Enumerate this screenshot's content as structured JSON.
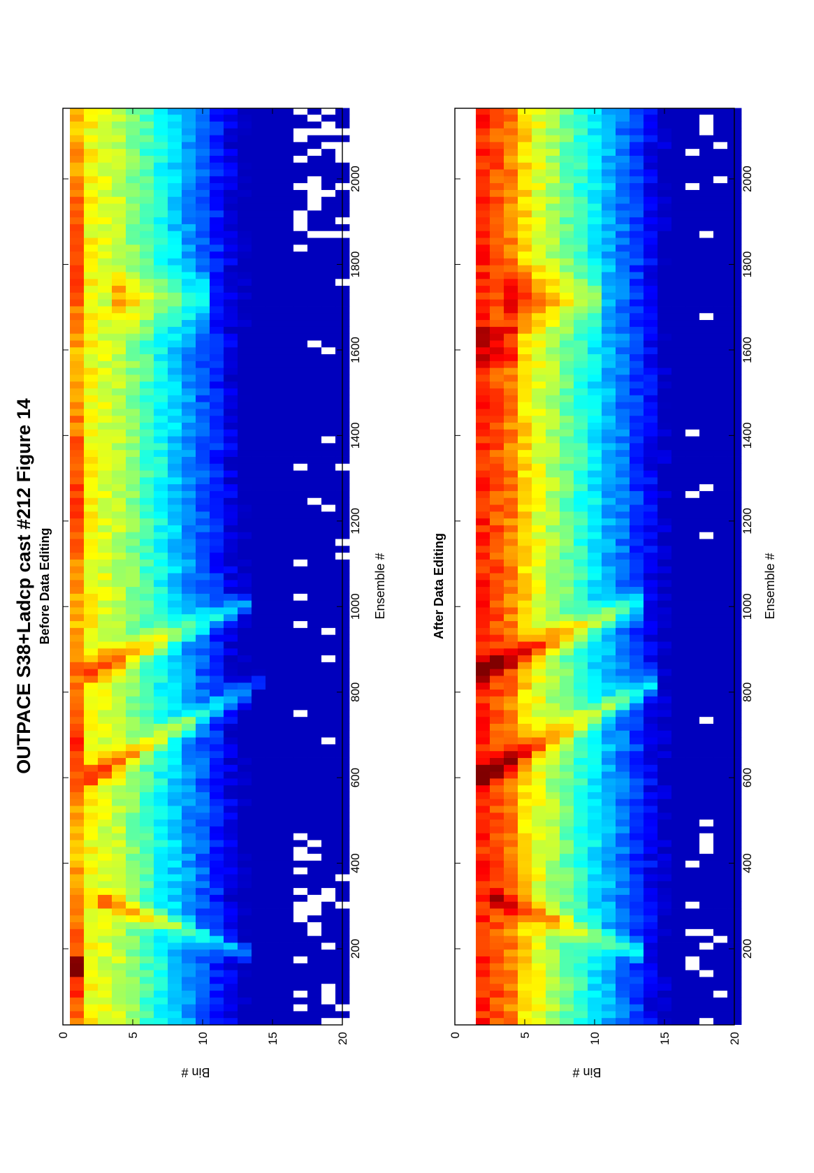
{
  "figure": {
    "title": "OUTPACE S38+Ladcp cast #212  Figure 14"
  },
  "chart_data": [
    {
      "type": "heatmap",
      "title": "Before Data Editing",
      "xlabel": "Ensemble #",
      "ylabel": "Bin #",
      "xlim": [
        22,
        2165
      ],
      "ylim": [
        0,
        20
      ],
      "x_ticks": [
        200,
        400,
        600,
        800,
        1000,
        1200,
        1400,
        1600,
        1800,
        2000
      ],
      "x_tick_labels": [
        "200",
        "400",
        "600",
        "800",
        "1000",
        "1200",
        "1400",
        "1600",
        "1800",
        "2000"
      ],
      "y_ticks": [
        0,
        5,
        10,
        15,
        20
      ],
      "y_tick_labels": [
        "0",
        "5",
        "10",
        "15",
        "20"
      ],
      "first_bin": 1,
      "last_bin": 20,
      "colormap": "jet",
      "missing_color": "#ffffff",
      "description_of_field": "Echo intensity highest (red/orange) in bins 1-3, decreasing to dark blue by bin 10; cyan diagonal streaks near ensembles 300, 600-700 and 850-950; white (flagged/missing) samples scattered in bins 17-20"
    },
    {
      "type": "heatmap",
      "title": "After Data Editing",
      "xlabel": "Ensemble #",
      "ylabel": "Bin #",
      "xlim": [
        22,
        2165
      ],
      "ylim": [
        0,
        20
      ],
      "x_ticks": [
        200,
        400,
        600,
        800,
        1000,
        1200,
        1400,
        1600,
        1800,
        2000
      ],
      "x_tick_labels": [
        "200",
        "400",
        "600",
        "800",
        "1000",
        "1200",
        "1400",
        "1600",
        "1800",
        "2000"
      ],
      "y_ticks": [
        0,
        5,
        10,
        15,
        20
      ],
      "y_tick_labels": [
        "0",
        "5",
        "10",
        "15",
        "20"
      ],
      "first_bin": 2,
      "last_bin": 20,
      "colormap": "jet",
      "missing_color": "#ffffff",
      "description_of_field": "Bin 1 removed (white); bins 2-4 red/orange, decreasing to dark blue by bin 11; fewer white flagged samples in bins 17-20"
    }
  ]
}
